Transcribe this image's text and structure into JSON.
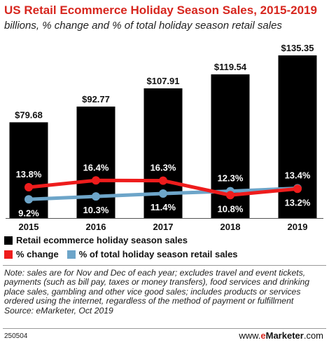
{
  "header": {
    "title": "US Retail Ecommerce Holiday Season Sales, 2015-2019",
    "subtitle": "billions, % change and % of total holiday season retail sales"
  },
  "chart_data": {
    "type": "bar",
    "categories": [
      "2015",
      "2016",
      "2017",
      "2018",
      "2019"
    ],
    "series": [
      {
        "name": "Retail ecommerce holiday season sales",
        "kind": "bar",
        "values": [
          79.68,
          92.77,
          107.91,
          119.54,
          135.35
        ],
        "labels": [
          "$79.68",
          "$92.77",
          "$107.91",
          "$119.54",
          "$135.35"
        ],
        "color": "#000000"
      },
      {
        "name": "% change",
        "kind": "line",
        "values": [
          13.8,
          16.4,
          16.3,
          10.8,
          13.2
        ],
        "labels": [
          "13.8%",
          "16.4%",
          "16.3%",
          "10.8%",
          "13.2%"
        ],
        "color": "#ee1c1c"
      },
      {
        "name": "% of total holiday season retail sales",
        "kind": "line",
        "values": [
          9.2,
          10.3,
          11.4,
          12.3,
          13.4
        ],
        "labels": [
          "9.2%",
          "10.3%",
          "11.4%",
          "12.3%",
          "13.4%"
        ],
        "color": "#6da5c9"
      }
    ],
    "title": "US Retail Ecommerce Holiday Season Sales, 2015-2019",
    "subtitle": "billions, % change and % of total holiday season retail sales",
    "ylim": [
      0,
      140
    ],
    "grid": false,
    "legend_position": "bottom"
  },
  "legend": {
    "bar_label": "Retail ecommerce holiday season sales",
    "change_label": "% change",
    "share_label": "% of total holiday season retail sales"
  },
  "note": "Note: sales are for Nov and Dec of each year; excludes travel and event tickets, payments (such as bill pay, taxes or money transfers), food services and drinking place sales, gambling and other vice good sales; includes products or services ordered using the internet, regardless of the method of payment or fulfillment",
  "source": "Source: eMarketer, Oct 2019",
  "footer": {
    "id": "250504",
    "site_prefix": "www.",
    "site_brand_e": "e",
    "site_brand_rest": "Marketer",
    "site_suffix": ".com"
  }
}
